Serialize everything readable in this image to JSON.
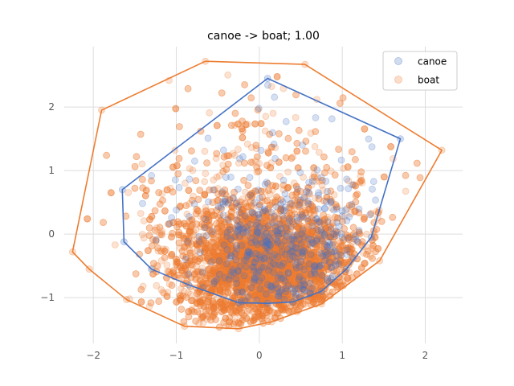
{
  "chart_data": {
    "type": "scatter",
    "title": "canoe -> boat; 1.00",
    "xlabel": "",
    "ylabel": "",
    "xlim": [
      -2.35,
      2.45
    ],
    "ylim": [
      -1.72,
      2.95
    ],
    "xticks": [
      -2,
      -1,
      0,
      1,
      2
    ],
    "yticks": [
      -1,
      0,
      1,
      2
    ],
    "xtick_labels": [
      "−2",
      "−1",
      "0",
      "1",
      "2"
    ],
    "ytick_labels": [
      "−1",
      "0",
      "1",
      "2"
    ],
    "grid": true,
    "legend_position": "top-right",
    "series": [
      {
        "name": "canoe",
        "color": "#4472c4",
        "point_count": 450,
        "center": [
          0.25,
          -0.35
        ],
        "hull": [
          [
            0.1,
            2.45
          ],
          [
            1.7,
            1.5
          ],
          [
            1.35,
            -0.05
          ],
          [
            1.05,
            -0.55
          ],
          [
            0.75,
            -0.9
          ],
          [
            0.4,
            -1.07
          ],
          [
            0.1,
            -1.09
          ],
          [
            -0.25,
            -1.08
          ],
          [
            -0.85,
            -0.8
          ],
          [
            -1.3,
            -0.55
          ],
          [
            -1.63,
            -0.12
          ],
          [
            -1.65,
            0.7
          ]
        ]
      },
      {
        "name": "boat",
        "color": "#ed7d31",
        "point_count": 5000,
        "center": [
          0.05,
          -0.55
        ],
        "hull": [
          [
            -0.65,
            2.72
          ],
          [
            0.55,
            2.67
          ],
          [
            2.2,
            1.32
          ],
          [
            1.45,
            -0.42
          ],
          [
            0.75,
            -1.1
          ],
          [
            0.15,
            -1.38
          ],
          [
            -0.25,
            -1.49
          ],
          [
            -0.9,
            -1.45
          ],
          [
            -1.6,
            -1.03
          ],
          [
            -2.05,
            -0.55
          ],
          [
            -2.25,
            -0.28
          ],
          [
            -1.9,
            1.95
          ]
        ]
      }
    ]
  }
}
